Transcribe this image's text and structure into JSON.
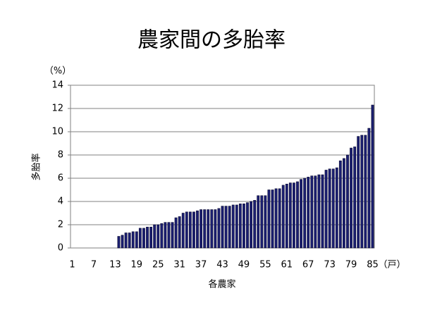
{
  "chart_data": {
    "type": "bar",
    "title": "農家間の多胎率",
    "y_unit": "（%）",
    "x_unit": "（戸）",
    "ylabel": "多胎率",
    "xlabel": "各農家",
    "categories": [
      "1",
      null,
      null,
      null,
      null,
      null,
      "7",
      null,
      null,
      null,
      null,
      null,
      "13",
      null,
      null,
      null,
      null,
      null,
      "19",
      null,
      null,
      null,
      null,
      null,
      "25",
      null,
      null,
      null,
      null,
      null,
      "31",
      null,
      null,
      null,
      null,
      null,
      "37",
      null,
      null,
      null,
      null,
      null,
      "43",
      null,
      null,
      null,
      null,
      null,
      "49",
      null,
      null,
      null,
      null,
      null,
      "55",
      null,
      null,
      null,
      null,
      null,
      "61",
      null,
      null,
      null,
      null,
      null,
      "67",
      null,
      null,
      null,
      null,
      null,
      "73",
      null,
      null,
      null,
      null,
      null,
      "79",
      null,
      null,
      null,
      null,
      null,
      "85"
    ],
    "values": [
      0,
      0,
      0,
      0,
      0,
      0,
      0,
      0,
      0,
      0,
      0,
      0,
      0,
      1.0,
      1.1,
      1.3,
      1.3,
      1.4,
      1.4,
      1.7,
      1.7,
      1.8,
      1.8,
      2.0,
      2.0,
      2.1,
      2.2,
      2.2,
      2.2,
      2.6,
      2.7,
      3.0,
      3.1,
      3.1,
      3.1,
      3.2,
      3.3,
      3.3,
      3.3,
      3.3,
      3.3,
      3.4,
      3.6,
      3.6,
      3.6,
      3.7,
      3.7,
      3.8,
      3.8,
      3.9,
      4.0,
      4.1,
      4.5,
      4.5,
      4.5,
      5.0,
      5.0,
      5.1,
      5.1,
      5.4,
      5.5,
      5.6,
      5.6,
      5.7,
      5.9,
      6.0,
      6.1,
      6.2,
      6.2,
      6.3,
      6.3,
      6.7,
      6.8,
      6.8,
      6.9,
      7.5,
      7.7,
      8.0,
      8.6,
      8.7,
      9.6,
      9.7,
      9.7,
      10.3,
      12.3
    ],
    "color": "#1b1f72",
    "ylim": [
      0,
      14
    ],
    "yticks": [
      0,
      2,
      4,
      6,
      8,
      10,
      12,
      14
    ],
    "grid": true
  }
}
